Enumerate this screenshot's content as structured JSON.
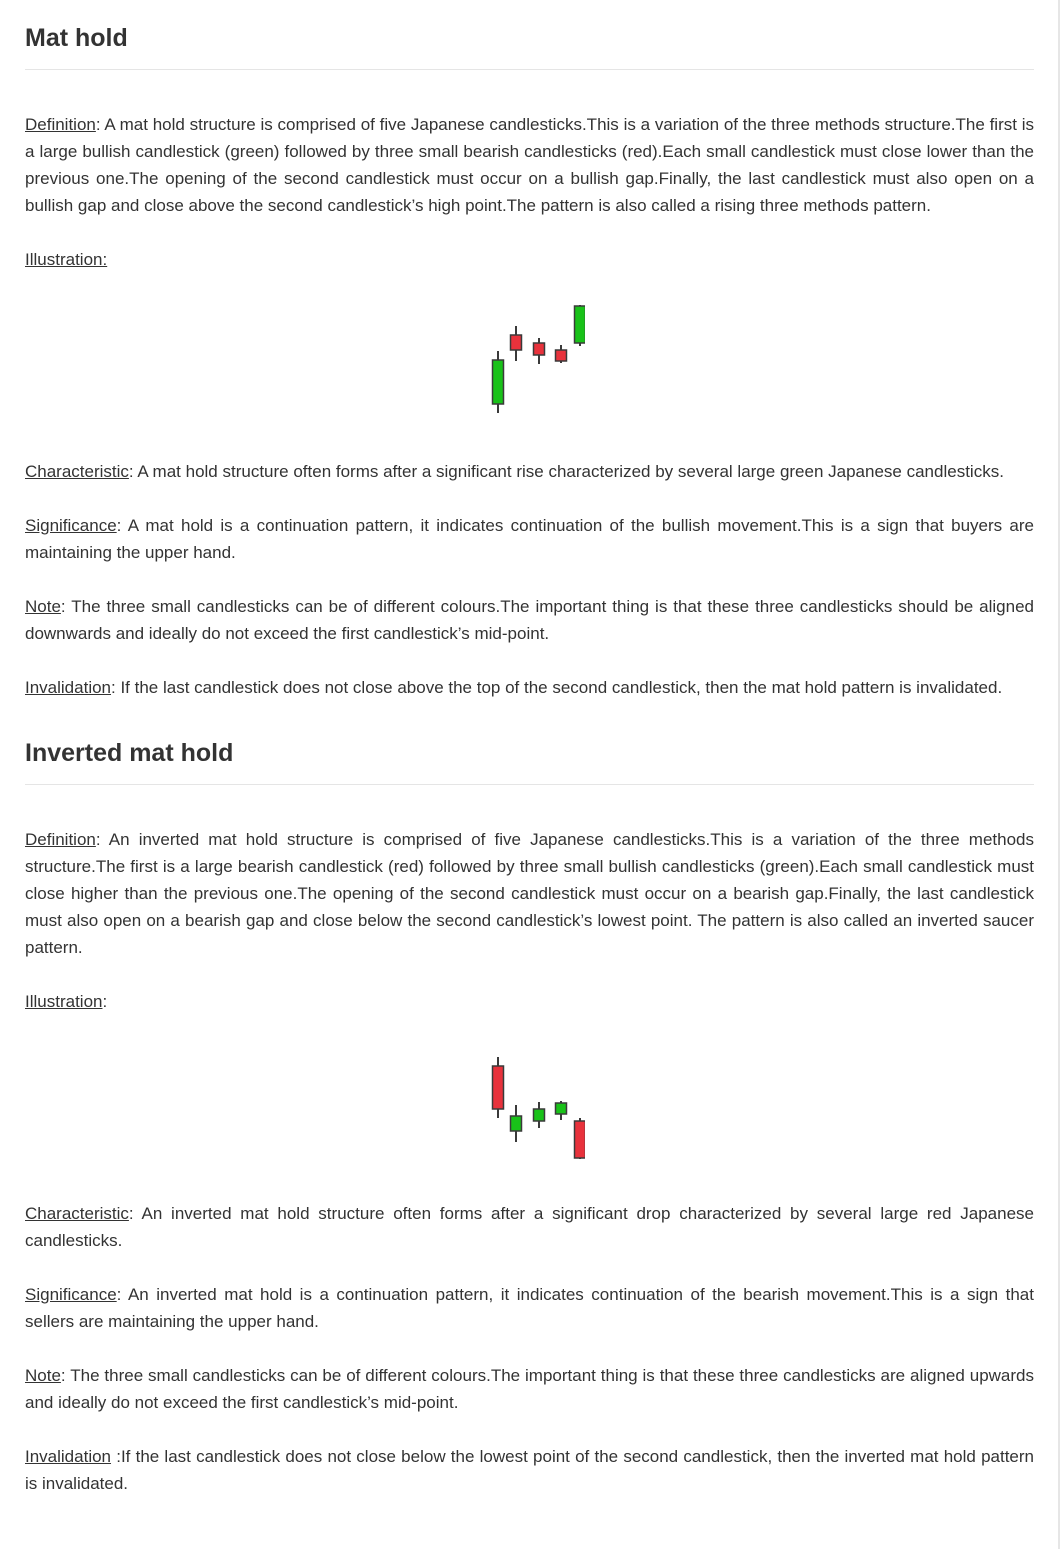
{
  "sections": [
    {
      "title": "Mat hold",
      "definition": {
        "label": "Definition",
        "text": ": A mat hold structure is comprised of five Japanese candlesticks.This is a variation of the three methods structure.The first is a large bullish candlestick (green) followed by three small bearish candlesticks (red).Each small candlestick must close lower than the previous one.The opening of the second candlestick must occur on a bullish gap.Finally, the last candlestick must also open on a bullish gap and close above the second candlestick’s high point.The pattern is also called a rising three methods pattern."
      },
      "illustration_label": "Illustration:",
      "illustration_suffix": "",
      "characteristic": {
        "label": "Characteristic",
        "text": ": A mat hold structure often forms after a significant rise characterized by several large green Japanese candlesticks."
      },
      "significance": {
        "label": "Significance",
        "text": ": A mat hold is a continuation pattern, it indicates continuation of the bullish movement.This is a sign that buyers are maintaining the upper hand."
      },
      "note": {
        "label": "Note",
        "text": ": The three small candlesticks can be of different colours.The important thing is that these three candlesticks should be aligned downwards and ideally do not exceed the first candlestick’s mid-point."
      },
      "invalidation": {
        "label": "Invalidation",
        "text": ": If the last candlestick does not close above the top of the second candlestick, then the mat hold pattern is invalidated."
      }
    },
    {
      "title": "Inverted mat hold",
      "definition": {
        "label": "Definition",
        "text": ": An inverted mat hold structure is comprised of five Japanese candlesticks.This is a variation of the three methods structure.The first is a large bearish candlestick (red) followed by three small bullish candlesticks (green).Each small candlestick must close higher than the previous one.The opening of the second candlestick must occur on a bearish gap.Finally, the last candlestick must also open on a bearish gap and close below the second candlestick’s lowest point. The pattern is also called an inverted saucer pattern."
      },
      "illustration_label": "Illustration",
      "illustration_suffix": ":",
      "characteristic": {
        "label": "Characteristic",
        "text": ": An inverted mat hold structure often forms after a significant drop characterized by several large red Japanese candlesticks."
      },
      "significance": {
        "label": "Significance",
        "text": ": An inverted mat hold is a continuation pattern, it indicates continuation of the bearish movement.This is a sign that sellers are maintaining the upper hand."
      },
      "note": {
        "label": "Note",
        "text": ": The three small candlesticks can be of different colours.The important thing is that these three candlesticks are aligned upwards and ideally do not exceed the first candlestick’s mid-point."
      },
      "invalidation": {
        "label": "Invalidation",
        "text": " :If the last candlestick does not close below the lowest point of the second candlestick, then the inverted mat hold pattern is invalidated."
      }
    }
  ],
  "illustrations": {
    "mat_hold": [
      {
        "color": "bullish"
      },
      {
        "color": "bearish"
      },
      {
        "color": "bearish"
      },
      {
        "color": "bearish"
      },
      {
        "color": "bullish"
      }
    ],
    "inverted_mat_hold": [
      {
        "color": "bearish"
      },
      {
        "color": "bullish"
      },
      {
        "color": "bullish"
      },
      {
        "color": "bullish"
      },
      {
        "color": "bearish"
      }
    ]
  },
  "colors": {
    "bullish": "#19c219",
    "bearish": "#e8323c",
    "wick": "#3a3a3a",
    "text": "#333333"
  }
}
